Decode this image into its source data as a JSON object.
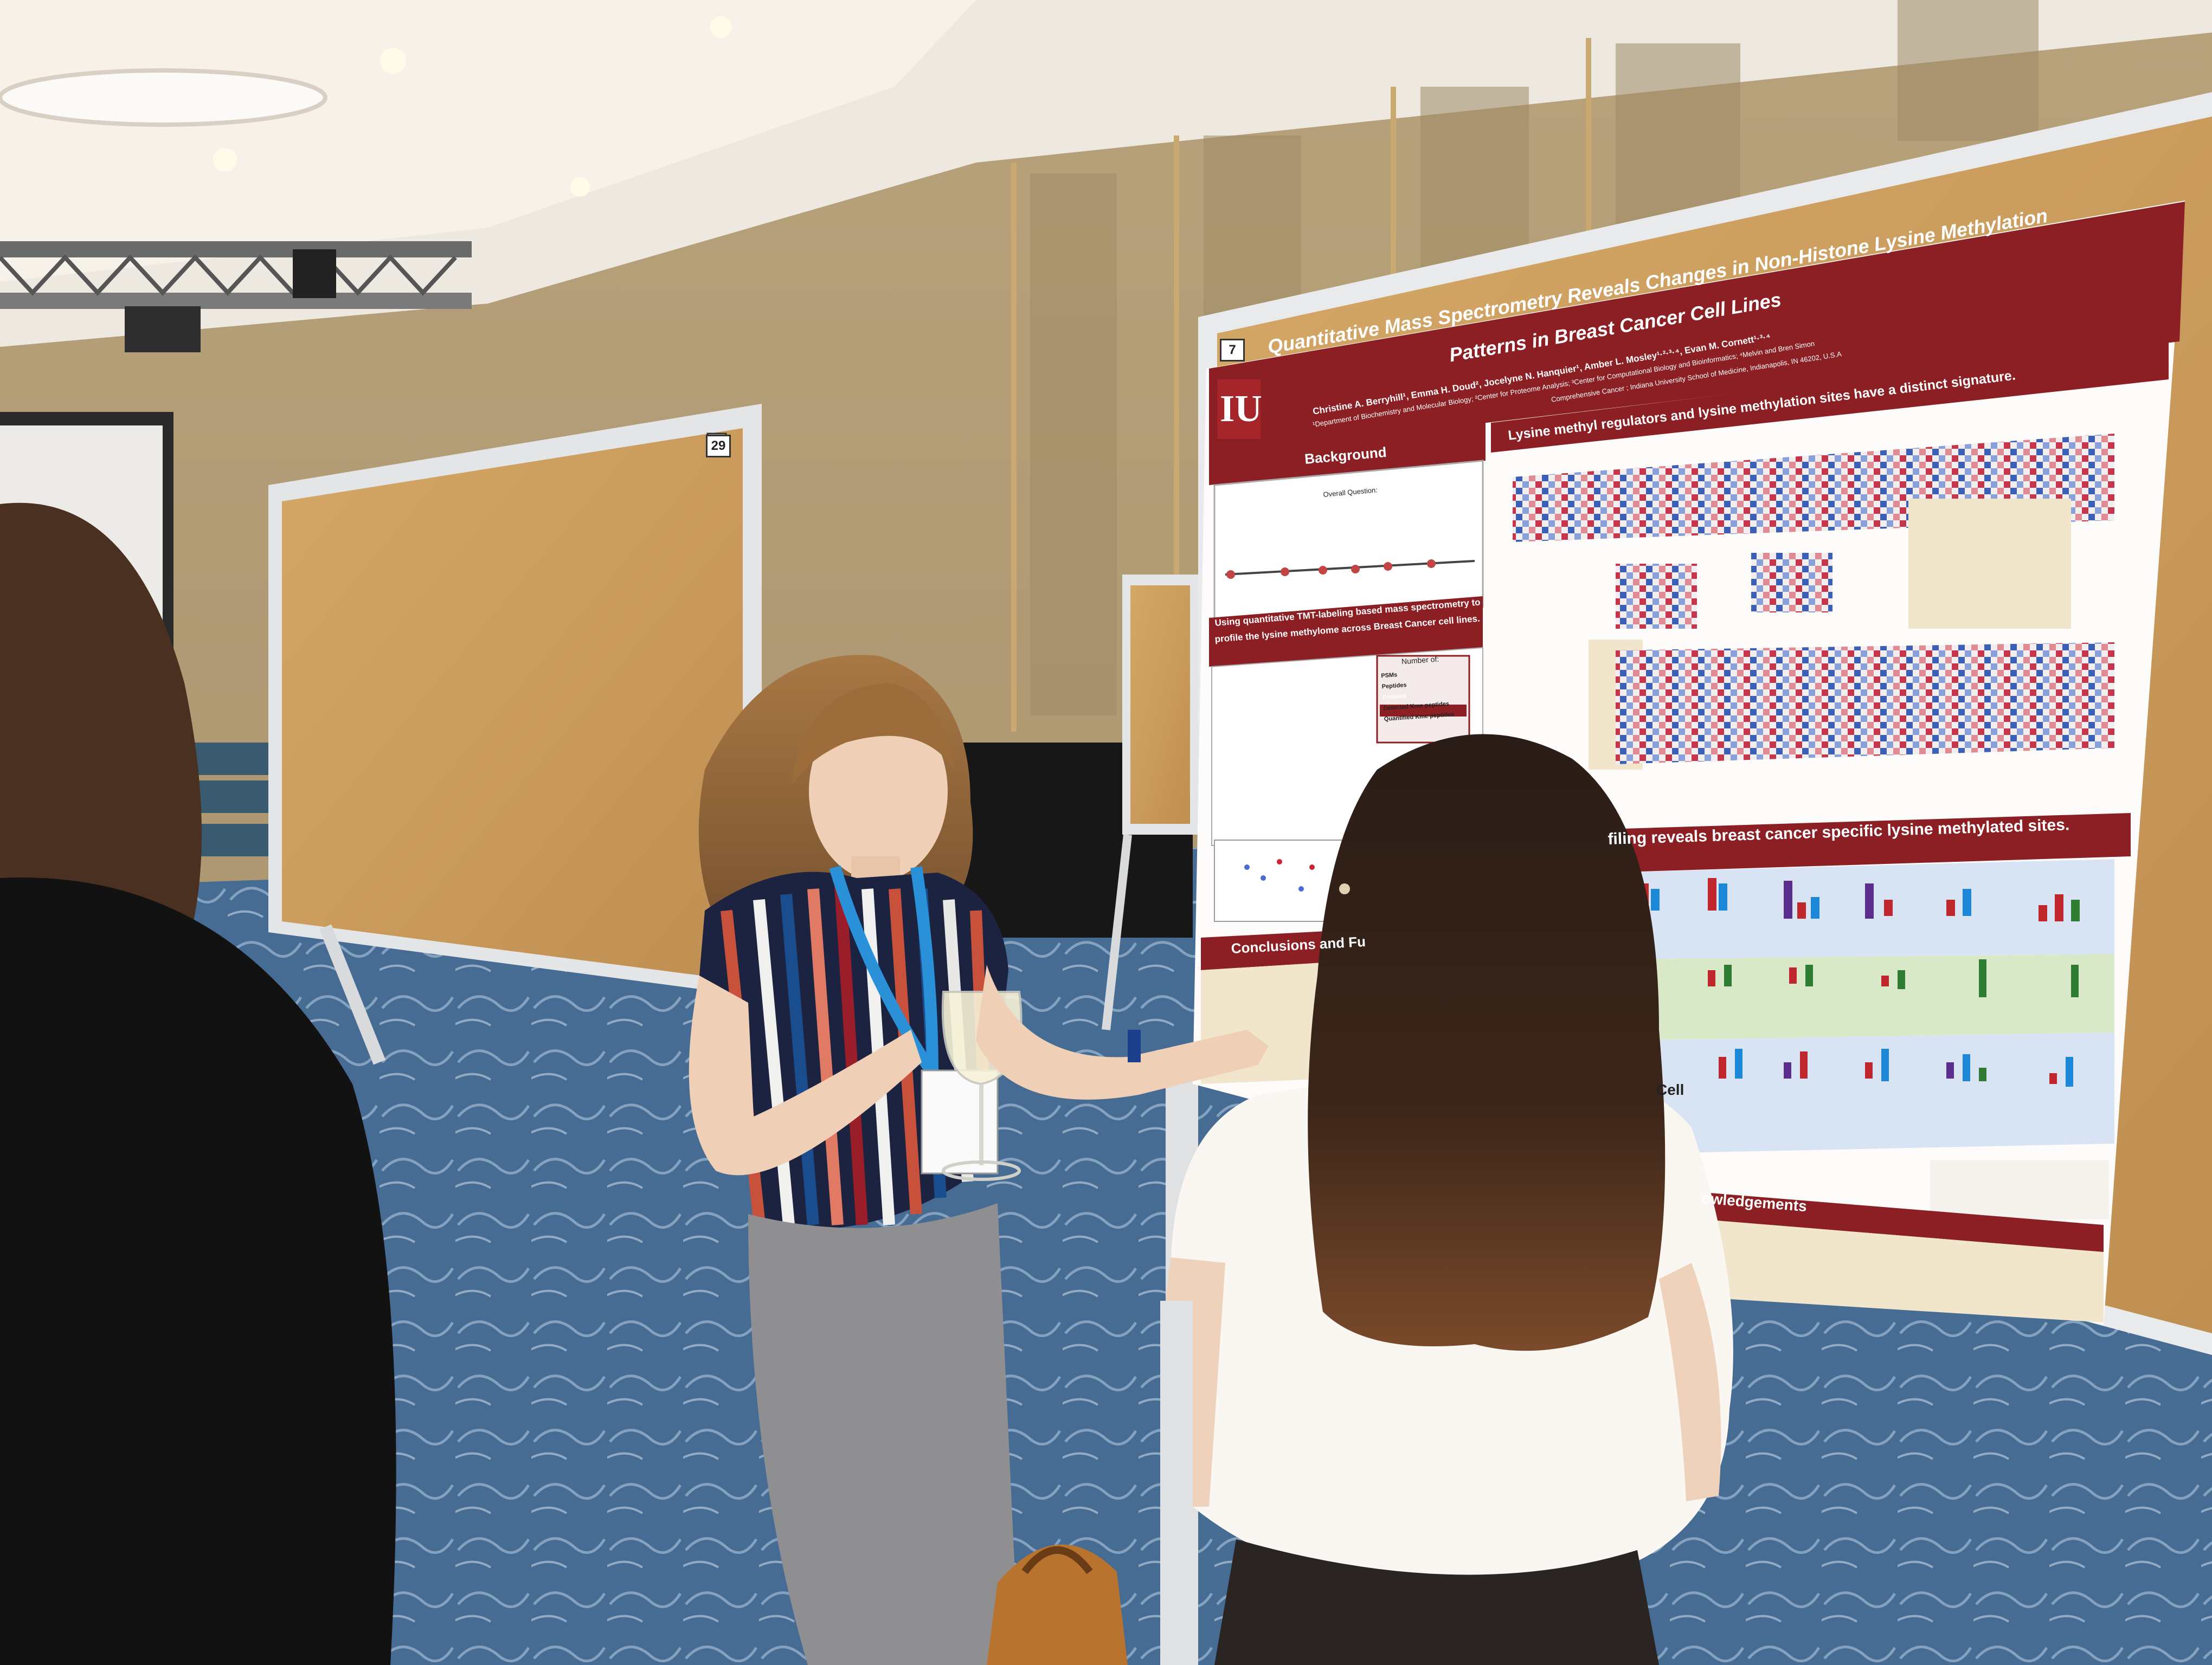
{
  "scene": {
    "board_numbers": {
      "back": "29",
      "front": "7"
    }
  },
  "poster": {
    "logo": "IU",
    "title_line1": "Quantitative Mass Spectrometry Reveals Changes in Non-Histone Lysine Methylation",
    "title_line2": "Patterns in Breast Cancer Cell Lines",
    "authors": "Christine A. Berryhill¹, Emma H. Doud², Jocelyne N. Hanquier¹, Amber L. Mosley¹·²·³·⁴, Evan M. Cornett¹·³·⁴",
    "affil1": "¹Department of Biochemistry and Molecular Biology; ²Center for Proteome Analysis; ³Center for Computational Biology and Bioinformatics; ⁴Melvin and Bren Simon",
    "affil2": "Comprehensive Cancer ; Indiana University School of Medicine, Indianapolis, IN 46202, U.S.A",
    "background_header": "Background",
    "background_question": "Overall Question:",
    "tmt_header_line1": "Using quantitative TMT-labeling based mass spectrometry to",
    "tmt_header_line2": "profile the lysine methylome across Breast Cancer cell lines.",
    "table_header": "Number of:",
    "table_rows": [
      "PSMs",
      "Peptides",
      "Proteins",
      "Detected Kme peptides",
      "Quantified Kme peptides"
    ],
    "conclusions_header": "Conclusions and Fu",
    "signature_header": "Lysine methyl regulators and lysine methylation sites have a distinct signature.",
    "profiling_header": "filing reveals breast cancer specific lysine methylated sites.",
    "ack_header": "owledgements",
    "cell_label": "Cell"
  }
}
